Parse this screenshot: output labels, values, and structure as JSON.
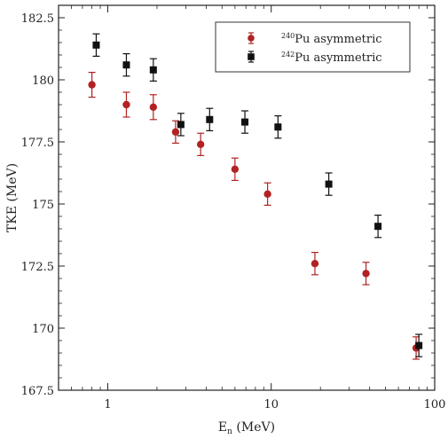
{
  "chart_data": {
    "type": "scatter",
    "title": "",
    "xlabel": "E",
    "xlabel_sub": "n",
    "xlabel_unit": " (MeV)",
    "ylabel": "TKE (MeV)",
    "xscale": "log",
    "xlim": [
      0.5,
      100
    ],
    "ylim": [
      167.5,
      183
    ],
    "xticks": [
      1,
      10,
      100
    ],
    "xtick_labels": [
      "1",
      "10",
      "100"
    ],
    "yticks": [
      167.5,
      170,
      172.5,
      175,
      177.5,
      180,
      182.5
    ],
    "ytick_labels": [
      "167.5",
      "170",
      "172.5",
      "175",
      "177.5",
      "180",
      "182.5"
    ],
    "legend_position": "top-right",
    "series": [
      {
        "name": "Pu asymmetric",
        "isotope": "240",
        "color": "#b22222",
        "marker": "circle",
        "x": [
          0.8,
          1.3,
          1.9,
          2.6,
          3.7,
          6.0,
          9.5,
          18.5,
          38.0,
          77.0
        ],
        "y": [
          179.8,
          179.0,
          178.9,
          177.9,
          177.4,
          176.4,
          175.4,
          172.6,
          172.2,
          169.2
        ],
        "yerr": [
          0.5,
          0.5,
          0.5,
          0.45,
          0.45,
          0.45,
          0.45,
          0.45,
          0.45,
          0.45
        ]
      },
      {
        "name": "Pu asymmetric",
        "isotope": "242",
        "color": "#111111",
        "marker": "square",
        "x": [
          0.85,
          1.3,
          1.9,
          2.8,
          4.2,
          6.9,
          11.0,
          22.5,
          45.0,
          80.0
        ],
        "y": [
          181.4,
          180.6,
          180.4,
          178.2,
          178.4,
          178.3,
          178.1,
          175.8,
          174.1,
          169.3
        ],
        "yerr": [
          0.45,
          0.45,
          0.45,
          0.45,
          0.45,
          0.45,
          0.45,
          0.45,
          0.45,
          0.45
        ]
      }
    ]
  }
}
